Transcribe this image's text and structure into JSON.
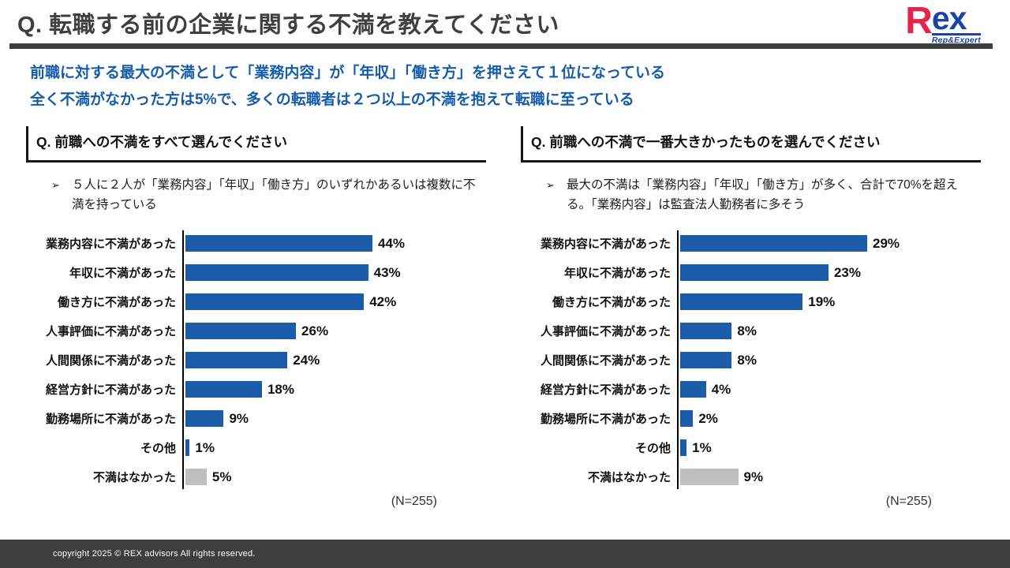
{
  "slide": {
    "title": "Q. 転職する前の企業に関する不満を教えてください",
    "logo": {
      "brand_r": "R",
      "brand_ex": "ex",
      "tagline": "Rep&Expert"
    },
    "lead_line1": "前職に対する最大の不満として「業務内容」が「年収」「働き方」を押さえて１位になっている",
    "lead_line2": "全く不満がなかった方は5%で、多くの転職者は２つ以上の不満を抱えて転職に至っている",
    "bullet_marker": "➢",
    "footer_copyright": "copyright 2025 © REX advisors All rights reserved."
  },
  "colors": {
    "accent_blue": "#155CAB",
    "bar_blue": "#1A5CA8",
    "bar_gray": "#BFBFBF",
    "heading_gray": "#3F3F3F",
    "logo_red": "#E5234B",
    "logo_blue": "#1A44A5",
    "footer_bg": "#3E3E3E"
  },
  "chart_data": [
    {
      "type": "bar",
      "orientation": "horizontal",
      "title": "Q. 前職への不満をすべて選んでください",
      "annotation": "５人に２人が「業務内容」「年収」「働き方」のいずれかあるいは複数に不満を持っている",
      "categories": [
        "業務内容に不満があった",
        "年収に不満があった",
        "働き方に不満があった",
        "人事評価に不満があった",
        "人間関係に不満があった",
        "経営方針に不満があった",
        "勤務場所に不満があった",
        "その他",
        "不満はなかった"
      ],
      "values": [
        44,
        43,
        42,
        26,
        24,
        18,
        9,
        1,
        5
      ],
      "value_suffix": "%",
      "bar_colors": [
        "#1A5CA8",
        "#1A5CA8",
        "#1A5CA8",
        "#1A5CA8",
        "#1A5CA8",
        "#1A5CA8",
        "#1A5CA8",
        "#1A5CA8",
        "#BFBFBF"
      ],
      "sample_label": "(N=255)",
      "xlim": [
        0,
        44
      ],
      "grid": "off",
      "legend": "none"
    },
    {
      "type": "bar",
      "orientation": "horizontal",
      "title": "Q. 前職への不満で一番大きかったものを選んでください",
      "annotation": "最大の不満は「業務内容」「年収」「働き方」が多く、合計で70%を超える。「業務内容」は監査法人勤務者に多そう",
      "categories": [
        "業務内容に不満があった",
        "年収に不満があった",
        "働き方に不満があった",
        "人事評価に不満があった",
        "人間関係に不満があった",
        "経営方針に不満があった",
        "勤務場所に不満があった",
        "その他",
        "不満はなかった"
      ],
      "values": [
        29,
        23,
        19,
        8,
        8,
        4,
        2,
        1,
        9
      ],
      "value_suffix": "%",
      "bar_colors": [
        "#1A5CA8",
        "#1A5CA8",
        "#1A5CA8",
        "#1A5CA8",
        "#1A5CA8",
        "#1A5CA8",
        "#1A5CA8",
        "#1A5CA8",
        "#BFBFBF"
      ],
      "sample_label": "(N=255)",
      "xlim": [
        0,
        29
      ],
      "grid": "off",
      "legend": "none"
    }
  ]
}
